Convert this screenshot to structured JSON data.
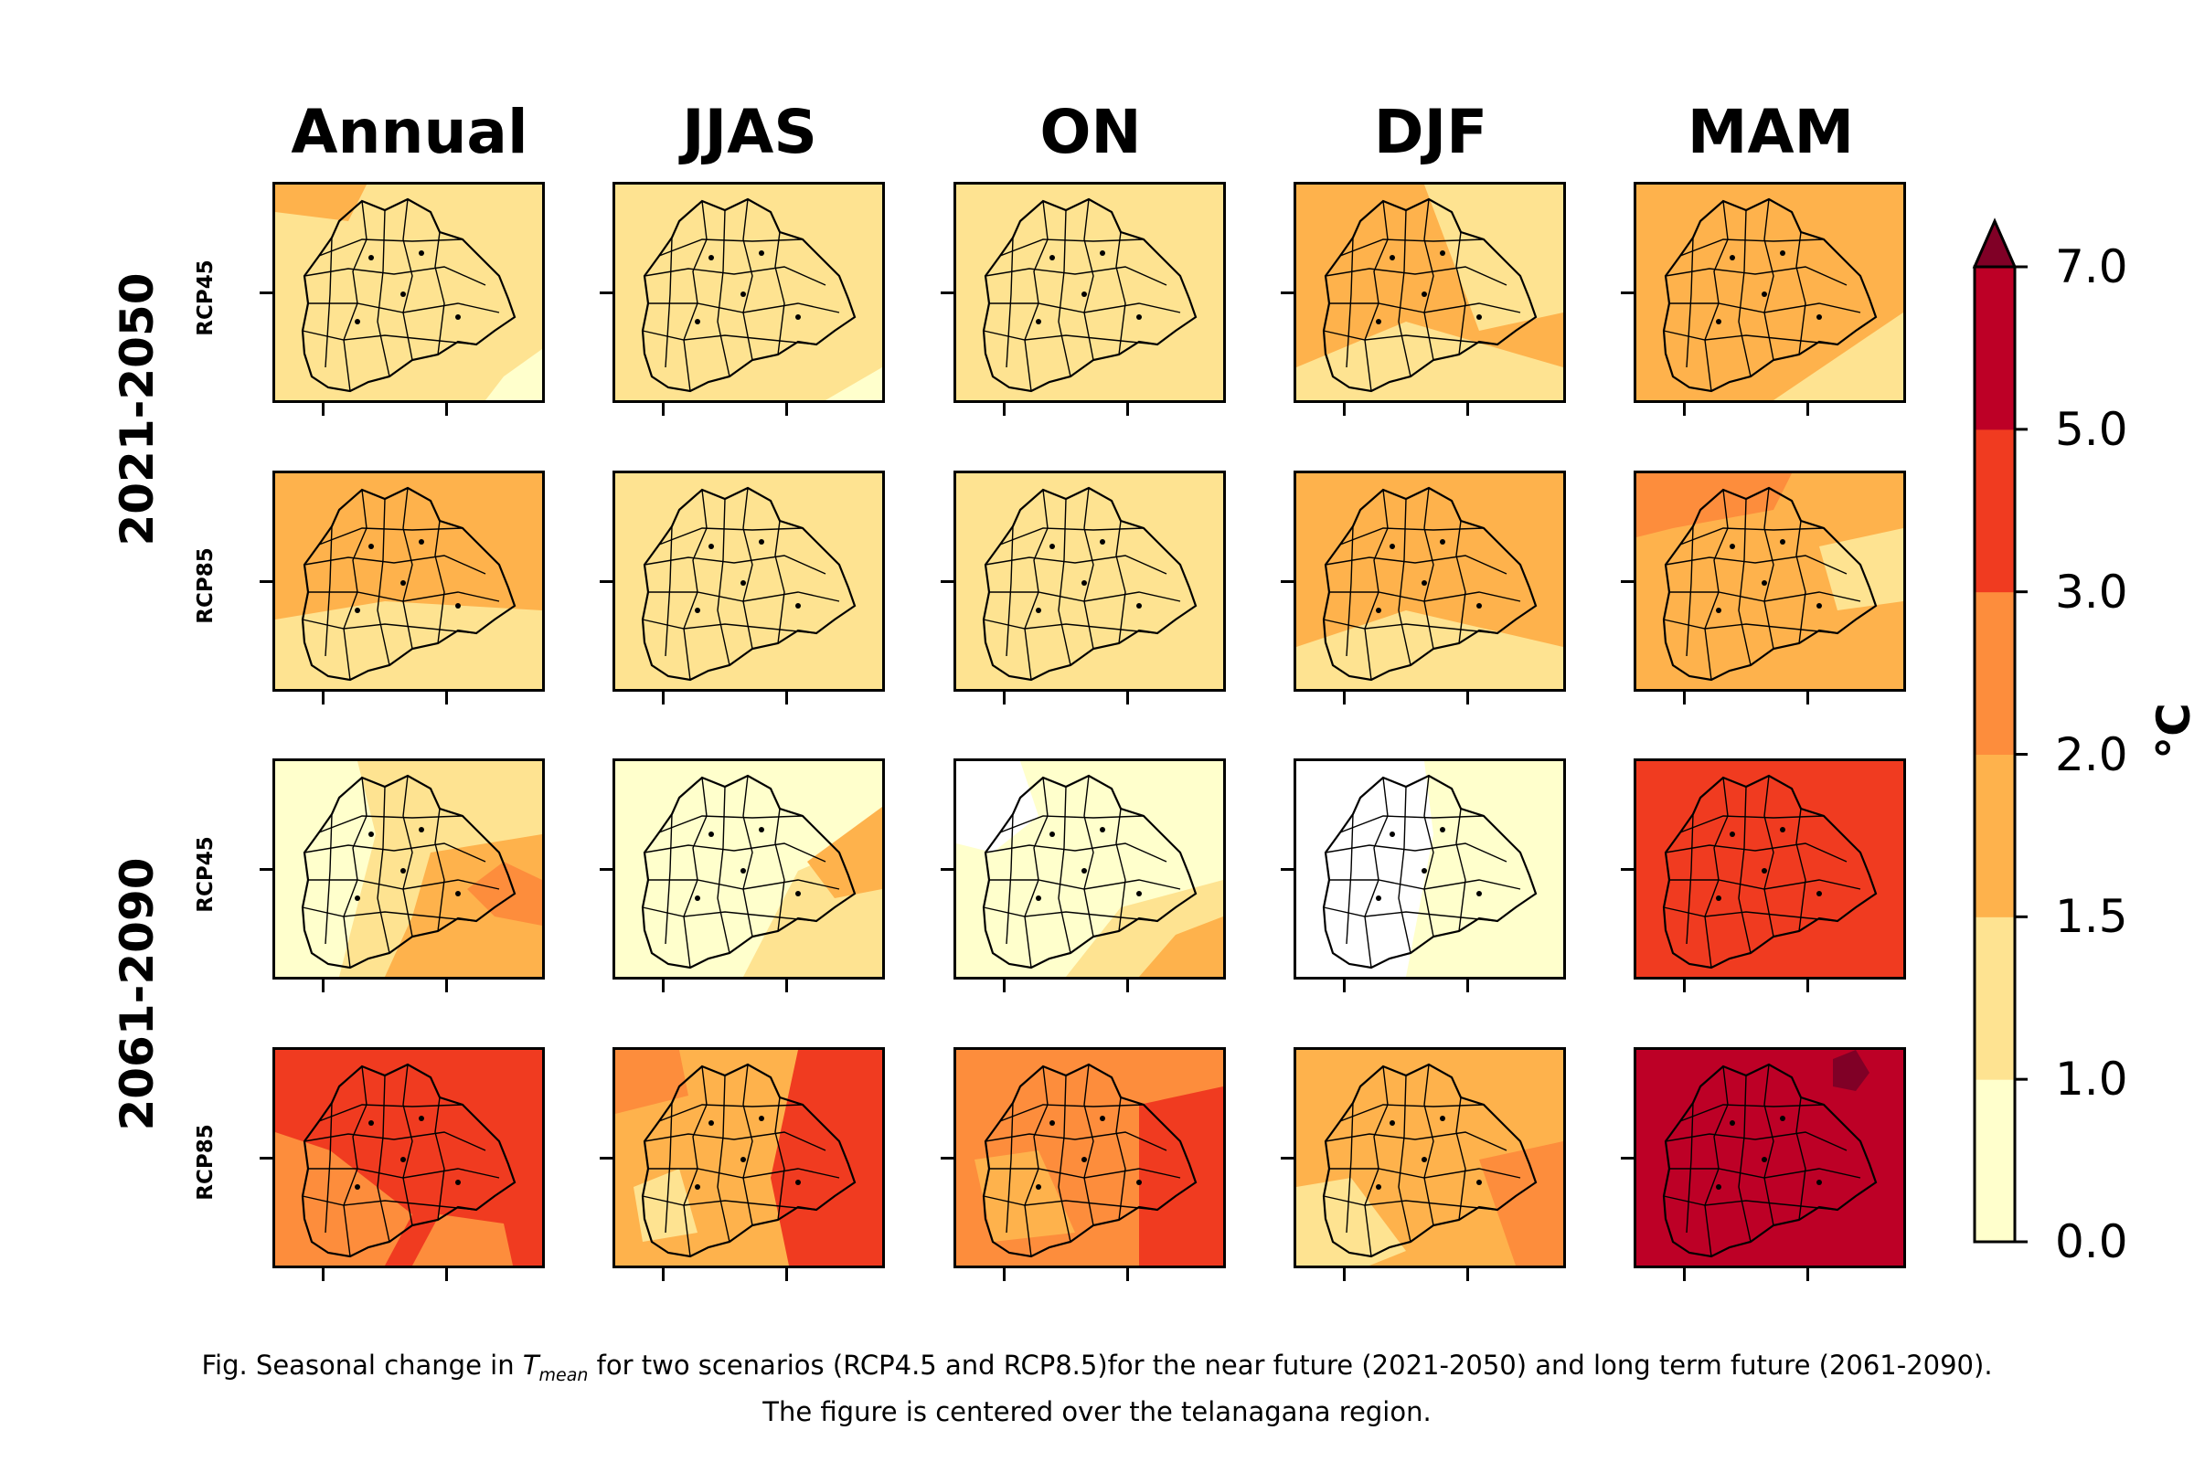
{
  "chart_data": {
    "type": "heatmap",
    "columns": [
      "Annual",
      "JJAS",
      "ON",
      "DJF",
      "MAM"
    ],
    "periods": [
      "2021-2050",
      "2061-2090"
    ],
    "scenarios": [
      "RCP45",
      "RCP85"
    ],
    "rows": [
      {
        "period": "2021-2050",
        "scenario": "RCP45",
        "dominant_class": [
          [
            1.0,
            1.5
          ],
          [
            1.0,
            1.5
          ],
          [
            1.0,
            1.5
          ],
          [
            1.5,
            2.0
          ],
          [
            1.5,
            2.0
          ]
        ]
      },
      {
        "period": "2021-2050",
        "scenario": "RCP85",
        "dominant_class": [
          [
            1.5,
            2.0
          ],
          [
            1.0,
            1.5
          ],
          [
            1.0,
            1.5
          ],
          [
            1.5,
            2.0
          ],
          [
            1.5,
            2.0
          ]
        ]
      },
      {
        "period": "2061-2090",
        "scenario": "RCP45",
        "dominant_class": [
          [
            1.0,
            1.5
          ],
          [
            0.0,
            1.0
          ],
          [
            1.0,
            1.5
          ],
          [
            0.0,
            1.0
          ],
          [
            3.0,
            5.0
          ]
        ]
      },
      {
        "period": "2061-2090",
        "scenario": "RCP85",
        "dominant_class": [
          [
            3.0,
            5.0
          ],
          [
            1.5,
            2.0
          ],
          [
            2.0,
            3.0
          ],
          [
            1.5,
            2.0
          ],
          [
            5.0,
            7.0
          ]
        ]
      }
    ],
    "colorbar": {
      "levels": [
        0.0,
        1.0,
        1.5,
        2.0,
        3.0,
        5.0,
        7.0
      ],
      "tick_labels": [
        "0.0",
        "1.0",
        "1.5",
        "2.0",
        "3.0",
        "5.0",
        "7.0"
      ],
      "colors": [
        "#ffffcc",
        "#fee391",
        "#feb24c",
        "#fd8d3c",
        "#f03b20",
        "#bd0026"
      ],
      "extend_color": "#800026",
      "extend": "max",
      "unit": "°C",
      "colormap": "YlOrRd"
    },
    "colors": {
      "c0": "#ffffff",
      "c1": "#ffffcc",
      "c2": "#fee391",
      "c3": "#feb24c",
      "c4": "#fd8d3c",
      "c5": "#f03b20",
      "c6": "#bd0026",
      "c7": "#800026"
    }
  },
  "caption": {
    "prefix": "Fig. Seasonal change in ",
    "symbol": "T",
    "subscript": "mean",
    "suffix": " for two scenarios (RCP4.5 and RCP8.5)for the near future (2021-2050) and long term future (2061-2090).",
    "line2": "The figure is centered over the telanagana region."
  }
}
